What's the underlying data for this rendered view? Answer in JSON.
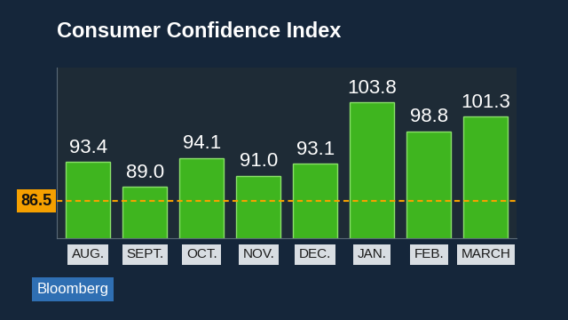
{
  "chart_data": {
    "type": "bar",
    "title": "Consumer Confidence Index",
    "categories": [
      "AUG.",
      "SEPT.",
      "OCT.",
      "NOV.",
      "DEC.",
      "JAN.",
      "FEB.",
      "MARCH"
    ],
    "values": [
      93.4,
      89.0,
      94.1,
      91.0,
      93.1,
      103.8,
      98.8,
      101.3
    ],
    "value_labels": [
      "93.4",
      "89.0",
      "94.1",
      "91.0",
      "93.1",
      "103.8",
      "98.8",
      "101.3"
    ],
    "color": "#3fb51f",
    "data_labels": true,
    "tick_labels": "x",
    "grid": false,
    "ylim": [
      80,
      110
    ],
    "yticks": [],
    "reference_line": {
      "value": 86.5,
      "label": "86.5",
      "color": "#f5a000"
    },
    "logo": "Bloomberg"
  }
}
